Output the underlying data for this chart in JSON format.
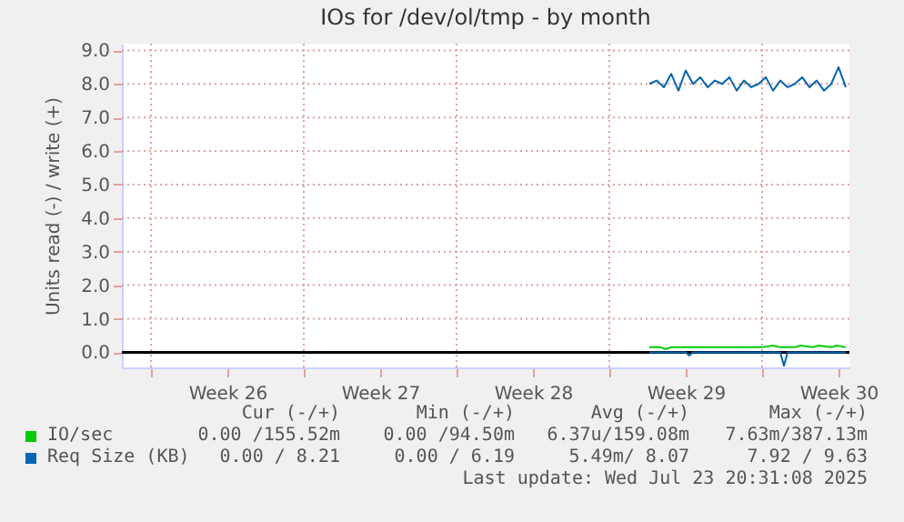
{
  "chart_data": {
    "type": "line",
    "title": "IOs for /dev/ol/tmp - by month",
    "ylabel": "Units read (-) / write (+)",
    "xlim": [
      "2025-06-20T16:00",
      "2025-07-24T00:00"
    ],
    "ylim": [
      -0.45,
      9.2
    ],
    "xticks": [
      {
        "value": "2025-06-22",
        "label": null
      },
      {
        "value": "2025-06-25T12:00",
        "label": "Week 26"
      },
      {
        "value": "2025-06-29",
        "label": null
      },
      {
        "value": "2025-07-02T12:00",
        "label": "Week 27"
      },
      {
        "value": "2025-07-06",
        "label": null
      },
      {
        "value": "2025-07-09T12:00",
        "label": "Week 28"
      },
      {
        "value": "2025-07-13",
        "label": null
      },
      {
        "value": "2025-07-16T12:00",
        "label": "Week 29"
      },
      {
        "value": "2025-07-20",
        "label": null
      },
      {
        "value": "2025-07-23T12:00",
        "label": "Week 30"
      }
    ],
    "yticks": [
      {
        "value": 0,
        "label": "0.0"
      },
      {
        "value": 1,
        "label": "1.0"
      },
      {
        "value": 2,
        "label": "2.0"
      },
      {
        "value": 3,
        "label": "3.0"
      },
      {
        "value": 4,
        "label": "4.0"
      },
      {
        "value": 5,
        "label": "5.0"
      },
      {
        "value": 6,
        "label": "6.0"
      },
      {
        "value": 7,
        "label": "7.0"
      },
      {
        "value": 8,
        "label": "8.0"
      },
      {
        "value": 9,
        "label": "9.0"
      }
    ],
    "grid": true,
    "legend": "bottom left",
    "ref_lines": [
      {
        "axis": "y",
        "value": 0,
        "color": "#000000"
      }
    ],
    "series": [
      {
        "name": "IO/sec",
        "color": "#00cc00",
        "x": [
          "2025-07-14T20:00",
          "2025-07-15T08:00",
          "2025-07-15T14:00",
          "2025-07-15T20:00",
          "2025-07-20T00:00",
          "2025-07-20T12:00",
          "2025-07-20T20:00",
          "2025-07-21T12:00",
          "2025-07-21T18:00",
          "2025-07-22T08:00",
          "2025-07-22T14:00",
          "2025-07-23T04:00",
          "2025-07-23T10:00",
          "2025-07-23T20:00"
        ],
        "values": [
          0.15,
          0.15,
          0.1,
          0.15,
          0.15,
          0.2,
          0.15,
          0.15,
          0.2,
          0.15,
          0.2,
          0.15,
          0.2,
          0.15
        ]
      },
      {
        "name": "Req Size (KB)",
        "color": "#0066b3",
        "x": [
          "2025-07-14T20:00",
          "2025-07-15T04:00",
          "2025-07-15T12:00",
          "2025-07-15T20:00",
          "2025-07-16T04:00",
          "2025-07-16T12:00",
          "2025-07-16T20:00",
          "2025-07-17T04:00",
          "2025-07-17T12:00",
          "2025-07-17T20:00",
          "2025-07-18T04:00",
          "2025-07-18T12:00",
          "2025-07-18T20:00",
          "2025-07-19T04:00",
          "2025-07-19T12:00",
          "2025-07-19T20:00",
          "2025-07-20T04:00",
          "2025-07-20T12:00",
          "2025-07-20T20:00",
          "2025-07-21T04:00",
          "2025-07-21T12:00",
          "2025-07-21T20:00",
          "2025-07-22T04:00",
          "2025-07-22T12:00",
          "2025-07-22T20:00",
          "2025-07-23T04:00",
          "2025-07-23T12:00",
          "2025-07-23T20:00"
        ],
        "values": [
          8.0,
          8.1,
          7.9,
          8.3,
          7.8,
          8.4,
          8.0,
          8.2,
          7.9,
          8.1,
          8.0,
          8.2,
          7.8,
          8.1,
          7.9,
          8.0,
          8.2,
          7.8,
          8.1,
          7.9,
          8.0,
          8.2,
          7.9,
          8.1,
          7.8,
          8.0,
          8.5,
          7.9
        ]
      },
      {
        "color": "#0066b3",
        "x": [
          "2025-07-14T20:00",
          "2025-07-16T12:00",
          "2025-07-16T16:00",
          "2025-07-16T20:00",
          "2025-07-20T20:00",
          "2025-07-21T00:00",
          "2025-07-21T04:00",
          "2025-07-23T20:00"
        ],
        "values": [
          0,
          0,
          -0.1,
          0,
          0,
          -0.4,
          0,
          0
        ]
      }
    ],
    "annotations": [
      "Cur (-/+)",
      "Min (-/+)",
      "Avg (-/+)",
      "Max (-/+)",
      "0.00 /155.52m",
      "0.00 /94.50m",
      "6.37u/159.08m",
      "7.63m/387.13m",
      "0.00 / 8.21",
      "0.00 / 6.19",
      "5.49m/ 8.07",
      "7.92 / 9.63",
      "Last update: Wed Jul 23 20:31:08 2025"
    ]
  }
}
